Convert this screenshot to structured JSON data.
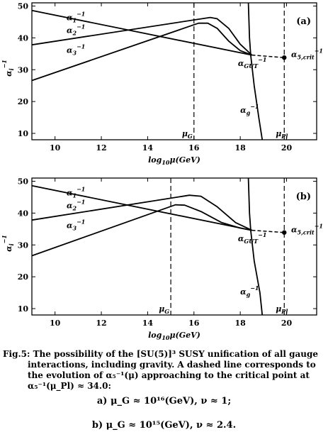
{
  "chart_data": [
    {
      "type": "line",
      "panel_label": "(a)",
      "xlabel": "log10μ(GeV)",
      "ylabel": "α_i^-1",
      "xlim": [
        9,
        21.3
      ],
      "ylim": [
        8,
        51
      ],
      "xticks": [
        10,
        12,
        14,
        16,
        18,
        20
      ],
      "yticks": [
        10,
        20,
        30,
        40,
        50
      ],
      "series": [
        {
          "name": "α1^-1",
          "points": [
            [
              9,
              48.6
            ],
            [
              18.5,
              34.6
            ]
          ]
        },
        {
          "name": "α2^-1",
          "points": [
            [
              9,
              37.8
            ],
            [
              16.7,
              46.4
            ],
            [
              17.0,
              46.0
            ],
            [
              17.5,
              43.0
            ],
            [
              18.0,
              38.0
            ],
            [
              18.5,
              34.6
            ]
          ]
        },
        {
          "name": "α3^-1",
          "points": [
            [
              9,
              26.6
            ],
            [
              16.2,
              44.6
            ],
            [
              16.6,
              44.6
            ],
            [
              17.0,
              43.0
            ],
            [
              17.5,
              39.0
            ],
            [
              18.0,
              36.0
            ],
            [
              18.5,
              34.6
            ]
          ]
        },
        {
          "name": "αg^-1",
          "points": [
            [
              18.35,
              51
            ],
            [
              18.4,
              40
            ],
            [
              18.45,
              34.6
            ],
            [
              18.6,
              25
            ],
            [
              18.8,
              15
            ],
            [
              18.95,
              8
            ]
          ]
        }
      ],
      "dashed_segment": {
        "from": [
          18.5,
          34.6
        ],
        "to": [
          19.9,
          33.8
        ]
      },
      "critical_point": [
        19.9,
        33.8
      ],
      "vlines": [
        {
          "x": 16,
          "label": "μ_G"
        },
        {
          "x": 19.9,
          "label": "μ_Pl"
        }
      ],
      "annotations": [
        {
          "text": "α_1^-1",
          "at": [
            10.5,
            45.5
          ]
        },
        {
          "text": "α_2^-1",
          "at": [
            10.5,
            41.5
          ]
        },
        {
          "text": "α_3^-1",
          "at": [
            10.5,
            35.3
          ]
        },
        {
          "text": "α_GUT^-1",
          "at": [
            17.9,
            31.2
          ]
        },
        {
          "text": "α_5,crit^-1",
          "at": [
            20.2,
            34.0
          ]
        },
        {
          "text": "α_g^-1",
          "at": [
            18.0,
            16.5
          ]
        }
      ]
    },
    {
      "type": "line",
      "panel_label": "(b)",
      "xlabel": "log10μ(GeV)",
      "ylabel": "α_i^-1",
      "xlim": [
        9,
        21.3
      ],
      "ylim": [
        8,
        51
      ],
      "xticks": [
        10,
        12,
        14,
        16,
        18,
        20
      ],
      "yticks": [
        10,
        20,
        30,
        40,
        50
      ],
      "series": [
        {
          "name": "α1^-1",
          "points": [
            [
              9,
              48.6
            ],
            [
              18.5,
              34.6
            ]
          ]
        },
        {
          "name": "α2^-1",
          "points": [
            [
              9,
              37.8
            ],
            [
              15.8,
              45.6
            ],
            [
              16.3,
              45.3
            ],
            [
              17.0,
              42.0
            ],
            [
              17.8,
              37.0
            ],
            [
              18.5,
              34.6
            ]
          ]
        },
        {
          "name": "α3^-1",
          "points": [
            [
              9,
              26.6
            ],
            [
              15.2,
              42.6
            ],
            [
              15.6,
              42.5
            ],
            [
              16.3,
              40.5
            ],
            [
              17.2,
              37.0
            ],
            [
              18.0,
              35.3
            ],
            [
              18.5,
              34.6
            ]
          ]
        },
        {
          "name": "αg^-1",
          "points": [
            [
              18.35,
              51
            ],
            [
              18.4,
              40
            ],
            [
              18.45,
              34.6
            ],
            [
              18.6,
              25
            ],
            [
              18.85,
              15
            ],
            [
              18.95,
              8
            ]
          ]
        }
      ],
      "dashed_segment": {
        "from": [
          18.5,
          34.6
        ],
        "to": [
          19.9,
          33.9
        ]
      },
      "critical_point": [
        19.9,
        33.9
      ],
      "vlines": [
        {
          "x": 15,
          "label": "μ_G"
        },
        {
          "x": 19.9,
          "label": "μ_Pl"
        }
      ],
      "annotations": [
        {
          "text": "α_1^-1",
          "at": [
            10.5,
            45.5
          ]
        },
        {
          "text": "α_2^-1",
          "at": [
            10.5,
            41.5
          ]
        },
        {
          "text": "α_3^-1",
          "at": [
            10.5,
            35.3
          ]
        },
        {
          "text": "α_GUT^-1",
          "at": [
            17.9,
            31.2
          ]
        },
        {
          "text": "α_5,crit^-1",
          "at": [
            20.2,
            34.0
          ]
        },
        {
          "text": "α_g^-1",
          "at": [
            18.0,
            14.5
          ]
        }
      ]
    }
  ],
  "caption": {
    "label": "Fig.5:",
    "line1": "The possibility of the [SU(5)]³ SUSY unification of all gauge",
    "line2": "interactions, including gravity.  A dashed line corresponds to",
    "line3": "the evolution of α₅⁻¹(μ) approaching to the critical point at",
    "line4": "α₅⁻¹(μ_Pl) ≈ 34.0:"
  },
  "formulas": {
    "a": "a)  μ_G ≈ 10¹⁶(GeV),   ν ≈ 1;",
    "b": "b)  μ_G ≈ 10¹⁵(GeV),   ν ≈ 2.4."
  }
}
